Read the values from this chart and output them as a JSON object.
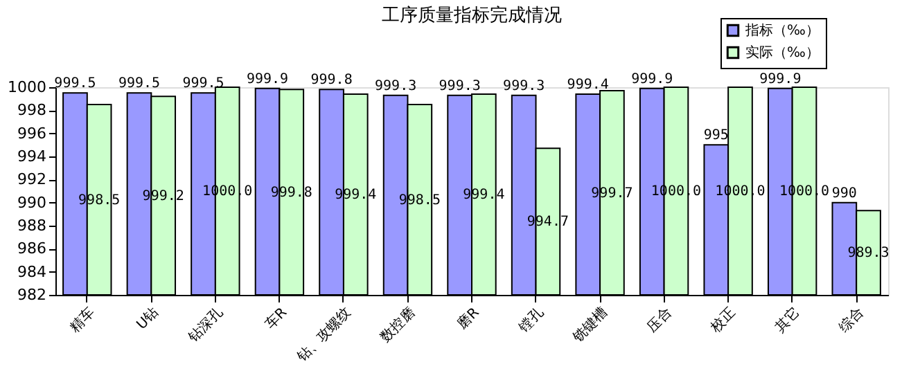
{
  "chart_data": {
    "type": "bar",
    "title": "工序质量指标完成情况",
    "categories": [
      "精车",
      "U钻",
      "钻深孔",
      "车R",
      "钻、攻螺纹",
      "数控磨",
      "磨R",
      "镗孔",
      "铣键槽",
      "压合",
      "校正",
      "其它",
      "综合"
    ],
    "series": [
      {
        "name": "指标（‰）",
        "color": "#9999ff",
        "values": [
          999.5,
          999.5,
          999.5,
          999.9,
          999.8,
          999.3,
          999.3,
          999.3,
          999.4,
          999.9,
          995,
          999.9,
          990
        ],
        "value_labels": [
          "999.5",
          "999.5",
          "999.5",
          "999.9",
          "999.8",
          "999.3",
          "999.3",
          "999.3",
          "999.4",
          "999.9",
          "995",
          "999.9",
          "990"
        ]
      },
      {
        "name": "实际（‰）",
        "color": "#ccffcc",
        "values": [
          998.5,
          999.2,
          1000.0,
          999.8,
          999.4,
          998.5,
          999.4,
          994.7,
          999.7,
          1000.0,
          1000.0,
          1000.0,
          989.3
        ],
        "value_labels": [
          "998.5",
          "999.2",
          "1000.0",
          "999.8",
          "999.4",
          "998.5",
          "999.4",
          "994.7",
          "999.7",
          "1000.0",
          "1000.0",
          "1000.0",
          "989.3"
        ]
      }
    ],
    "ylim": [
      982,
      1000
    ],
    "yticks": [
      982,
      984,
      986,
      988,
      990,
      992,
      994,
      996,
      998,
      1000
    ],
    "grid": false,
    "legend": "top right"
  }
}
